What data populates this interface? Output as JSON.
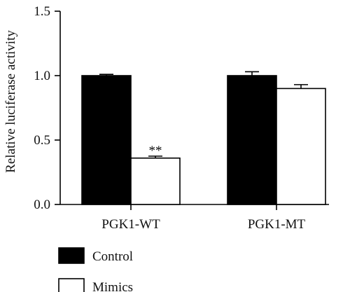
{
  "chart_data": {
    "type": "bar",
    "title": "",
    "xlabel": "",
    "ylabel": "Relative luciferase activity",
    "ylim": [
      0,
      1.5
    ],
    "yticks": [
      0.0,
      0.5,
      1.0,
      1.5
    ],
    "ytick_labels": [
      "0.0",
      "0.5",
      "1.0",
      "1.5"
    ],
    "categories": [
      "PGK1-WT",
      "PGK1-MT"
    ],
    "series": [
      {
        "name": "Control",
        "color": "#000000",
        "values": [
          1.0,
          1.0
        ],
        "errors": [
          0.01,
          0.03
        ]
      },
      {
        "name": "Mimics",
        "color": "#ffffff",
        "values": [
          0.36,
          0.9
        ],
        "errors": [
          0.015,
          0.03
        ]
      }
    ],
    "annotations": [
      {
        "text": "**",
        "category": "PGK1-WT",
        "series": "Mimics"
      }
    ],
    "legend_position": "bottom-left",
    "grid": false
  }
}
